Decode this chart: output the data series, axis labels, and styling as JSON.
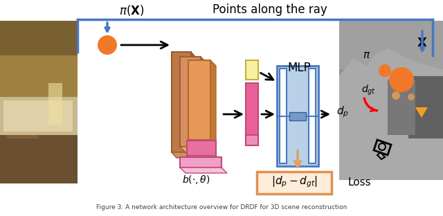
{
  "bg_color": "#ffffff",
  "pi_x_label": "$\\pi(\\mathbf{X})$",
  "x_label": "$\\mathbf{X}$",
  "mlp_label": "MLP",
  "dp_label": "$d_p$",
  "dgt_label": "$d_{gt}$",
  "b_theta_label": "$b(\\cdot, \\theta)$",
  "loss_box_label": "$|d_p - d_{gt}|$",
  "loss_label": "Loss",
  "points_ray_label": "Points along the ray",
  "pi_label": "$\\pi$",
  "orange": "#F07828",
  "pink_dark": "#E8609A",
  "pink_light": "#F0A0C0",
  "pink_pale": "#F5C8D8",
  "blue_fill": "#B8D0E8",
  "blue_border": "#4878C0",
  "blue_dark": "#3060A8",
  "orange_net1": "#E87828",
  "orange_net2": "#D0906A",
  "orange_net3": "#C08060",
  "yellow_small": "#F8F0A0",
  "yellow_border": "#C0B040",
  "loss_border": "#E09050",
  "loss_bg": "#FDECD8",
  "orange_arrow": "#E0A060",
  "caption_color": "#404040"
}
